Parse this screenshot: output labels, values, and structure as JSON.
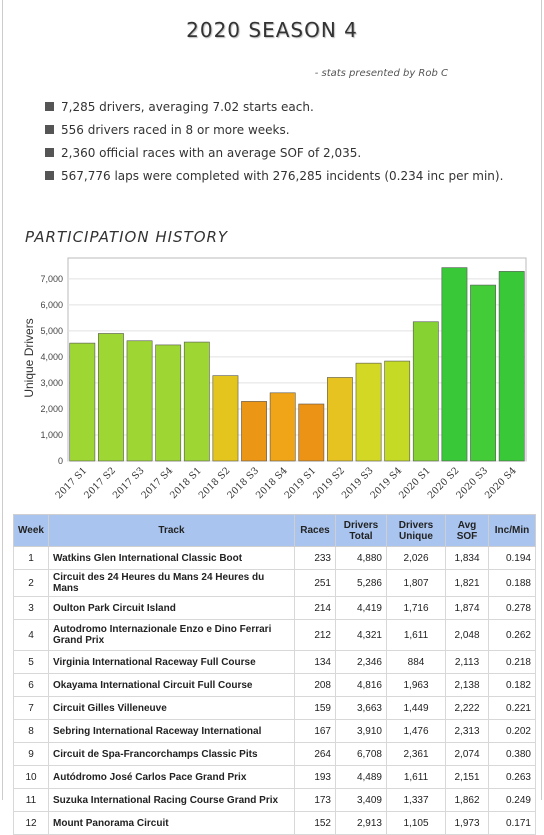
{
  "header": {
    "title": "2020 SEASON 4",
    "credit": "- stats presented by Rob C"
  },
  "stats": [
    "7,285 drivers, averaging 7.02 starts each.",
    "556 drivers raced in 8 or more weeks.",
    "2,360 official races with an average SOF of 2,035.",
    "567,776 laps were completed with 276,285 incidents (0.234 inc per min)."
  ],
  "participation": {
    "title": "PARTICIPATION HISTORY"
  },
  "chart_data": {
    "type": "bar",
    "title": "",
    "xlabel": "",
    "ylabel": "Unique Drivers",
    "ylim": [
      0,
      7800
    ],
    "yticks": [
      0,
      1000,
      2000,
      3000,
      4000,
      5000,
      6000,
      7000
    ],
    "ytick_labels": [
      "0",
      "1,000",
      "2,000",
      "3,000",
      "4,000",
      "5,000",
      "6,000",
      "7,000"
    ],
    "grid": true,
    "categories": [
      "2017 S1",
      "2017 S2",
      "2017 S3",
      "2017 S4",
      "2018 S1",
      "2018 S2",
      "2018 S3",
      "2018 S4",
      "2019 S1",
      "2019 S2",
      "2019 S3",
      "2019 S4",
      "2020 S1",
      "2020 S2",
      "2020 S3",
      "2020 S4"
    ],
    "values": [
      4530,
      4900,
      4620,
      4460,
      4570,
      3280,
      2290,
      2620,
      2190,
      3210,
      3760,
      3840,
      5350,
      7430,
      6760,
      7285
    ],
    "colors": [
      "#9ed634",
      "#9ed634",
      "#9ed634",
      "#9ed634",
      "#9ed634",
      "#e3c51e",
      "#ec9616",
      "#efa517",
      "#ec9214",
      "#e6c320",
      "#d3d824",
      "#c4da25",
      "#85d232",
      "#39c938",
      "#44cc38",
      "#39c938"
    ]
  },
  "table": {
    "headers": {
      "week": "Week",
      "track": "Track",
      "races": "Races",
      "drivers_total": [
        "Drivers",
        "Total"
      ],
      "drivers_unique": [
        "Drivers",
        "Unique"
      ],
      "avg_sof": [
        "Avg",
        "SOF"
      ],
      "inc_min": "Inc/Min"
    },
    "rows": [
      {
        "week": "1",
        "track": "Watkins Glen International Classic Boot",
        "races": "233",
        "total": "4,880",
        "unique": "2,026",
        "sof": "1,834",
        "inc": "0.194"
      },
      {
        "week": "2",
        "track": "Circuit des 24 Heures du Mans 24 Heures du Mans",
        "races": "251",
        "total": "5,286",
        "unique": "1,807",
        "sof": "1,821",
        "inc": "0.188"
      },
      {
        "week": "3",
        "track": "Oulton Park Circuit Island",
        "races": "214",
        "total": "4,419",
        "unique": "1,716",
        "sof": "1,874",
        "inc": "0.278"
      },
      {
        "week": "4",
        "track": "Autodromo Internazionale Enzo e Dino Ferrari Grand Prix",
        "races": "212",
        "total": "4,321",
        "unique": "1,611",
        "sof": "2,048",
        "inc": "0.262"
      },
      {
        "week": "5",
        "track": "Virginia International Raceway Full Course",
        "races": "134",
        "total": "2,346",
        "unique": "884",
        "sof": "2,113",
        "inc": "0.218"
      },
      {
        "week": "6",
        "track": "Okayama International Circuit Full Course",
        "races": "208",
        "total": "4,816",
        "unique": "1,963",
        "sof": "2,138",
        "inc": "0.182"
      },
      {
        "week": "7",
        "track": "Circuit Gilles Villeneuve",
        "races": "159",
        "total": "3,663",
        "unique": "1,449",
        "sof": "2,222",
        "inc": "0.221"
      },
      {
        "week": "8",
        "track": "Sebring International Raceway International",
        "races": "167",
        "total": "3,910",
        "unique": "1,476",
        "sof": "2,313",
        "inc": "0.202"
      },
      {
        "week": "9",
        "track": "Circuit de Spa-Francorchamps Classic Pits",
        "races": "264",
        "total": "6,708",
        "unique": "2,361",
        "sof": "2,074",
        "inc": "0.380"
      },
      {
        "week": "10",
        "track": "Autódromo José Carlos Pace Grand Prix",
        "races": "193",
        "total": "4,489",
        "unique": "1,611",
        "sof": "2,151",
        "inc": "0.263"
      },
      {
        "week": "11",
        "track": "Suzuka International Racing Course Grand Prix",
        "races": "173",
        "total": "3,409",
        "unique": "1,337",
        "sof": "1,862",
        "inc": "0.249"
      },
      {
        "week": "12",
        "track": "Mount Panorama Circuit",
        "races": "152",
        "total": "2,913",
        "unique": "1,105",
        "sof": "1,973",
        "inc": "0.171"
      }
    ]
  }
}
